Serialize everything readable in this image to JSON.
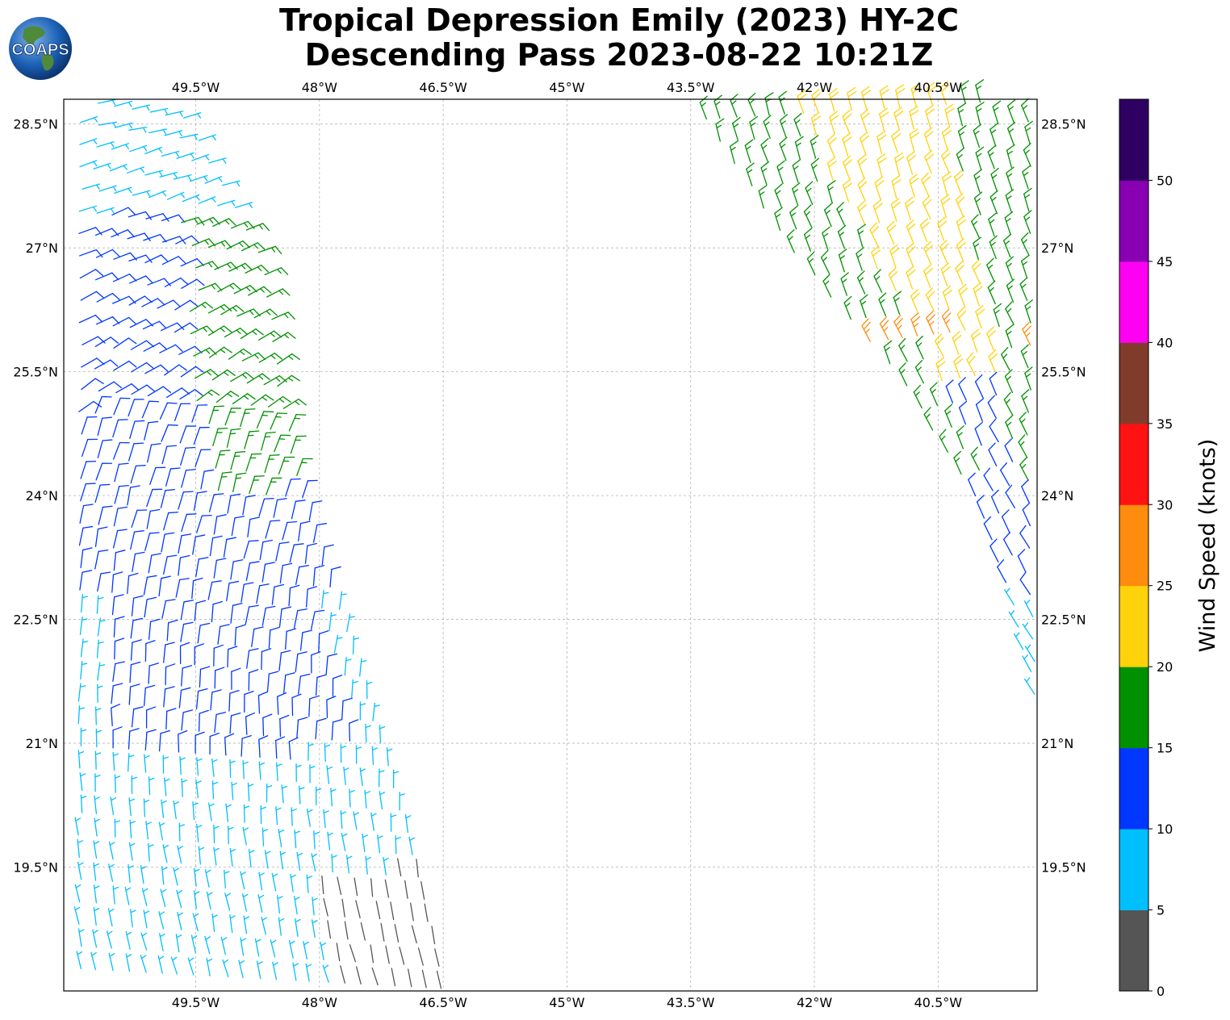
{
  "title_line1": "Tropical Depression Emily (2023) HY-2C",
  "title_line2": "Descending Pass 2023-08-22 10:21Z",
  "logo_text": "COAPS",
  "colorbar_label": "Wind Speed (knots)",
  "colors": {
    "0-5": "#555555",
    "5-10": "#00bfff",
    "10-15": "#0037ff",
    "15-20": "#009100",
    "20-25": "#ffd20c",
    "25-30": "#ff8c0c",
    "30-35": "#ff1212",
    "35-40": "#813b2b",
    "40-45": "#ff00f2",
    "45-50": "#8800b1",
    "50-55": "#2e0061"
  },
  "chart_data": {
    "type": "wind-barb map",
    "lon_ticks": [
      "49.5°W",
      "48°W",
      "46.5°W",
      "45°W",
      "43.5°W",
      "42°W",
      "40.5°W"
    ],
    "lat_ticks": [
      "28.5°N",
      "27°N",
      "25.5°N",
      "24°N",
      "22.5°N",
      "21°N",
      "19.5°N"
    ],
    "lon_range": [
      -51.1,
      -39.3
    ],
    "lat_range": [
      18.0,
      28.8
    ],
    "grid": true,
    "colorbar": {
      "ticks": [
        "0",
        "5",
        "10",
        "15",
        "20",
        "25",
        "30",
        "35",
        "40",
        "45",
        "50"
      ],
      "range": [
        0,
        55
      ],
      "bins": [
        {
          "min": 0,
          "max": 5,
          "color": "#555555"
        },
        {
          "min": 5,
          "max": 10,
          "color": "#00bfff"
        },
        {
          "min": 10,
          "max": 15,
          "color": "#0037ff"
        },
        {
          "min": 15,
          "max": 20,
          "color": "#009100"
        },
        {
          "min": 20,
          "max": 25,
          "color": "#ffd20c"
        },
        {
          "min": 25,
          "max": 30,
          "color": "#ff8c0c"
        },
        {
          "min": 30,
          "max": 35,
          "color": "#ff1212"
        },
        {
          "min": 35,
          "max": 40,
          "color": "#813b2b"
        },
        {
          "min": 40,
          "max": 45,
          "color": "#ff00f2"
        },
        {
          "min": 45,
          "max": 50,
          "color": "#8800b1"
        },
        {
          "min": 50,
          "max": 55,
          "color": "#2e0061"
        }
      ]
    },
    "swaths": [
      {
        "name": "west",
        "lat_top": 28.8,
        "lat_bottom": 18.0,
        "lon_left": -51.0,
        "right_edge": [
          [
            28.8,
            -49.6
          ],
          [
            27.0,
            -48.6
          ],
          [
            25.5,
            -48.4
          ],
          [
            24.0,
            -48.1
          ],
          [
            22.5,
            -47.6
          ],
          [
            21.0,
            -47.1
          ],
          [
            19.5,
            -46.7
          ],
          [
            18.1,
            -46.4
          ]
        ],
        "speed_zones": [
          {
            "lat_min": 27.4,
            "lat_max": 28.8,
            "speed": 8
          },
          {
            "lat_min": 24.0,
            "lat_max": 27.4,
            "speed": 13,
            "east_speed": 17
          },
          {
            "lat_min": 22.8,
            "lat_max": 24.0,
            "speed": 12
          },
          {
            "lat_min": 20.8,
            "lat_max": 22.8,
            "speed": 12,
            "edge_speed": 8
          },
          {
            "lat_min": 19.4,
            "lat_max": 20.8,
            "speed": 8
          },
          {
            "lat_min": 18.0,
            "lat_max": 19.4,
            "speed": 8,
            "calm_patch_speed": 3
          }
        ]
      },
      {
        "name": "east",
        "lat_top": 28.8,
        "lat_bottom": 21.6,
        "lon_right": -39.3,
        "left_edge": [
          [
            28.8,
            -43.5
          ],
          [
            27.0,
            -42.3
          ],
          [
            25.5,
            -41.0
          ],
          [
            24.0,
            -40.1
          ],
          [
            22.5,
            -39.6
          ],
          [
            21.6,
            -39.3
          ]
        ],
        "speed_zones": [
          {
            "lat_min": 25.3,
            "lat_max": 28.8,
            "speed": 18,
            "center_speed": 22
          },
          {
            "lat_min": 25.8,
            "lat_max": 26.0,
            "speed": 27
          },
          {
            "lat_min": 24.0,
            "lat_max": 25.3,
            "speed": 17,
            "center_speed": 12
          },
          {
            "lat_min": 22.8,
            "lat_max": 24.0,
            "speed": 12
          },
          {
            "lat_min": 21.6,
            "lat_max": 22.8,
            "speed": 8
          }
        ]
      }
    ]
  }
}
